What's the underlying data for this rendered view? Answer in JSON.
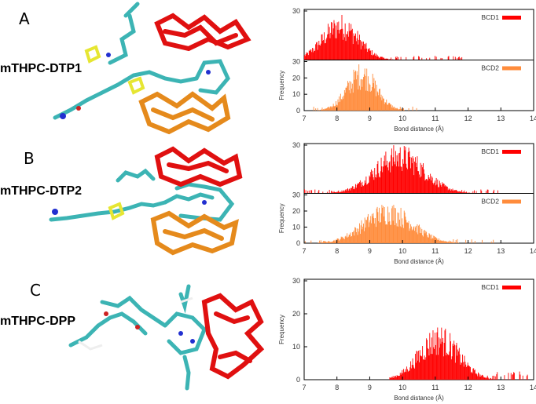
{
  "panels": [
    {
      "letter": "A",
      "molecule": "mTHPC-DTP1"
    },
    {
      "letter": "B",
      "molecule": "mTHPC-DTP2"
    },
    {
      "letter": "C",
      "molecule": "mTHPC-DPP"
    }
  ],
  "colors": {
    "bcd1": "#ff0000",
    "bcd2": "#ff8c3c",
    "carbon": "#3cb4b4",
    "nitrogen": "#2230d0",
    "oxygen": "#cc2222",
    "sulfur": "#e6e632",
    "hydrogen": "#dddddd"
  },
  "icons": {
    "molecule_render": "molecule-structure-icon"
  },
  "chart_data": [
    {
      "type": "histogram",
      "xlabel": "Bond distance (Å)",
      "ylabel": "Frequency",
      "xlim": [
        7,
        14
      ],
      "xticks": [
        7,
        8,
        9,
        10,
        11,
        12,
        13,
        14
      ],
      "ylim": [
        0,
        30
      ],
      "yticks": [
        0,
        10,
        20,
        30
      ],
      "series": [
        {
          "name": "BCD1",
          "color": "#ff0000",
          "mean": 8.1,
          "sd": 0.55,
          "peak": 22,
          "range": [
            7,
            11.8
          ]
        },
        {
          "name": "BCD2",
          "color": "#ff8c3c",
          "mean": 8.75,
          "sd": 0.45,
          "peak": 23,
          "range": [
            7.2,
            10.5
          ]
        }
      ]
    },
    {
      "type": "histogram",
      "xlabel": "Bond distance (Å)",
      "ylabel": "Frequency",
      "xlim": [
        7,
        14
      ],
      "xticks": [
        7,
        8,
        9,
        10,
        11,
        12,
        13,
        14
      ],
      "ylim": [
        0,
        30
      ],
      "yticks": [
        0,
        10,
        20,
        30
      ],
      "series": [
        {
          "name": "BCD1",
          "color": "#ff0000",
          "mean": 9.9,
          "sd": 0.75,
          "peak": 24,
          "range": [
            7,
            13
          ]
        },
        {
          "name": "BCD2",
          "color": "#ff8c3c",
          "mean": 9.55,
          "sd": 0.75,
          "peak": 20,
          "range": [
            7,
            12.8
          ]
        }
      ]
    },
    {
      "type": "histogram",
      "xlabel": "Bond distance (Å)",
      "ylabel": "Frequency",
      "xlim": [
        7,
        14
      ],
      "xticks": [
        7,
        8,
        9,
        10,
        11,
        12,
        13,
        14
      ],
      "ylim": [
        0,
        30
      ],
      "yticks": [
        0,
        10,
        20,
        30
      ],
      "series": [
        {
          "name": "BCD1",
          "color": "#ff0000",
          "mean": 11.1,
          "sd": 0.6,
          "peak": 13,
          "range": [
            9.6,
            13.9
          ]
        }
      ]
    }
  ]
}
